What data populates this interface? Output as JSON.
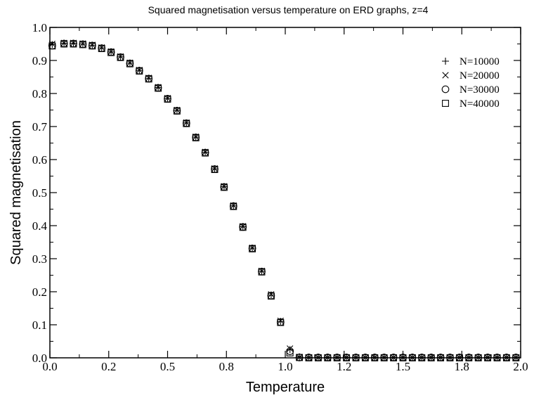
{
  "chart_data": {
    "type": "scatter",
    "title": "Squared magnetisation versus temperature on ERD graphs, z=4",
    "xlabel": "Temperature",
    "ylabel": "Squared magnetisation",
    "xlim": [
      0,
      2
    ],
    "ylim": [
      0,
      1
    ],
    "x_ticks": [
      "0.0",
      "0.2",
      "0.5",
      "0.8",
      "1.0",
      "1.2",
      "1.5",
      "1.8",
      "2.0"
    ],
    "y_ticks": [
      "0.0",
      "0.1",
      "0.2",
      "0.3",
      "0.4",
      "0.5",
      "0.6",
      "0.7",
      "0.8",
      "0.9",
      "1.0"
    ],
    "grid": false,
    "legend_position": "top-right",
    "x": [
      0.01,
      0.06,
      0.1,
      0.14,
      0.18,
      0.22,
      0.26,
      0.3,
      0.34,
      0.38,
      0.42,
      0.46,
      0.5,
      0.54,
      0.58,
      0.62,
      0.66,
      0.7,
      0.74,
      0.78,
      0.82,
      0.86,
      0.9,
      0.94,
      0.98,
      1.02,
      1.06,
      1.1,
      1.14,
      1.18,
      1.22,
      1.26,
      1.3,
      1.34,
      1.38,
      1.42,
      1.46,
      1.5,
      1.54,
      1.58,
      1.62,
      1.66,
      1.7,
      1.74,
      1.78,
      1.82,
      1.86,
      1.9,
      1.94,
      1.98
    ],
    "series": [
      {
        "name": "N=10000",
        "marker": "plus",
        "values": [
          0.948,
          0.952,
          0.952,
          0.95,
          0.946,
          0.938,
          0.926,
          0.911,
          0.892,
          0.87,
          0.846,
          0.818,
          0.785,
          0.749,
          0.711,
          0.668,
          0.622,
          0.572,
          0.518,
          0.46,
          0.397,
          0.332,
          0.262,
          0.19,
          0.11,
          0.025,
          0.003,
          0.002,
          0.002,
          0.002,
          0.002,
          0.002,
          0.002,
          0.002,
          0.002,
          0.002,
          0.002,
          0.002,
          0.002,
          0.002,
          0.002,
          0.002,
          0.002,
          0.002,
          0.002,
          0.002,
          0.002,
          0.002,
          0.002,
          0.002
        ]
      },
      {
        "name": "N=20000",
        "marker": "cross",
        "values": [
          0.95,
          0.953,
          0.953,
          0.951,
          0.947,
          0.939,
          0.927,
          0.912,
          0.893,
          0.871,
          0.847,
          0.819,
          0.786,
          0.75,
          0.712,
          0.669,
          0.623,
          0.573,
          0.519,
          0.461,
          0.398,
          0.333,
          0.263,
          0.192,
          0.112,
          0.028,
          0.002,
          0.001,
          0.001,
          0.001,
          0.001,
          0.001,
          0.001,
          0.001,
          0.001,
          0.001,
          0.001,
          0.001,
          0.001,
          0.001,
          0.001,
          0.001,
          0.001,
          0.001,
          0.001,
          0.001,
          0.001,
          0.001,
          0.001,
          0.001
        ]
      },
      {
        "name": "N=30000",
        "marker": "circle",
        "values": [
          0.945,
          0.951,
          0.951,
          0.949,
          0.945,
          0.937,
          0.925,
          0.91,
          0.891,
          0.869,
          0.845,
          0.817,
          0.784,
          0.748,
          0.71,
          0.667,
          0.621,
          0.571,
          0.517,
          0.459,
          0.396,
          0.331,
          0.261,
          0.188,
          0.108,
          0.02,
          0.001,
          0.001,
          0.001,
          0.001,
          0.001,
          0.001,
          0.001,
          0.001,
          0.001,
          0.001,
          0.001,
          0.001,
          0.001,
          0.001,
          0.001,
          0.001,
          0.001,
          0.001,
          0.001,
          0.001,
          0.001,
          0.001,
          0.001,
          0.001
        ]
      },
      {
        "name": "N=40000",
        "marker": "square",
        "values": [
          0.944,
          0.95,
          0.95,
          0.948,
          0.944,
          0.936,
          0.924,
          0.909,
          0.89,
          0.868,
          0.844,
          0.816,
          0.783,
          0.747,
          0.709,
          0.666,
          0.62,
          0.57,
          0.516,
          0.458,
          0.395,
          0.33,
          0.26,
          0.187,
          0.107,
          0.015,
          0.001,
          0.0,
          0.0,
          0.0,
          0.0,
          0.0,
          0.0,
          0.0,
          0.0,
          0.0,
          0.0,
          0.0,
          0.0,
          0.0,
          0.0,
          0.0,
          0.0,
          0.0,
          0.0,
          0.0,
          0.0,
          0.0,
          0.0,
          0.0
        ]
      }
    ]
  }
}
